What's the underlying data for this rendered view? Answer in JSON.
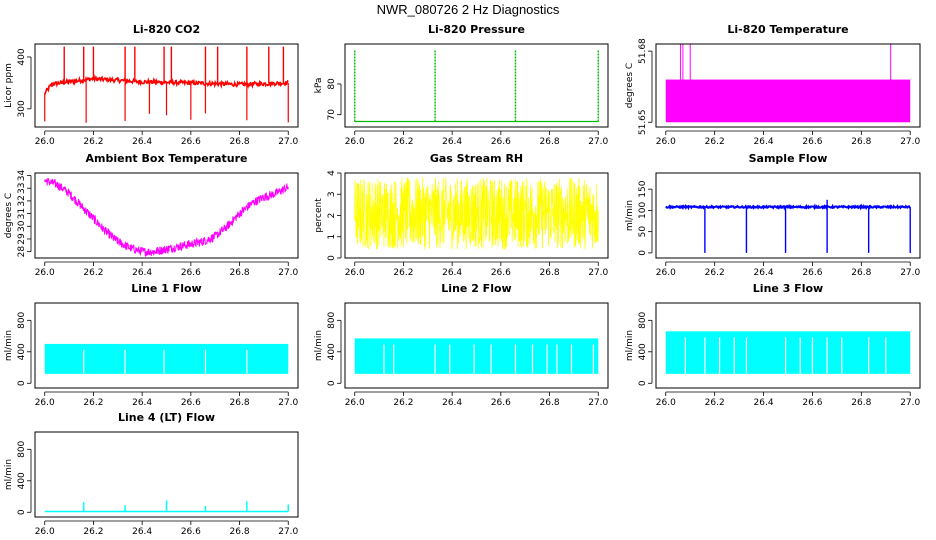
{
  "page": {
    "title": "NWR_080726  2 Hz Diagnostics"
  },
  "chart_data": [
    {
      "id": "co2",
      "type": "line",
      "title": "Li-820 CO2",
      "ylabel": "Licor ppm",
      "color": "#ff0000",
      "xlim": [
        26.0,
        27.0
      ],
      "xticks": [
        "26.0",
        "26.2",
        "26.4",
        "26.6",
        "26.8",
        "27.0"
      ],
      "ylim": [
        265,
        425
      ],
      "yticks": [
        300,
        400
      ],
      "series": [
        {
          "baseline": [
            [
              26.0,
              330
            ],
            [
              26.03,
              348
            ],
            [
              26.1,
              352
            ],
            [
              26.2,
              358
            ],
            [
              26.4,
              352
            ],
            [
              26.6,
              350
            ],
            [
              26.8,
              347
            ],
            [
              27.0,
              350
            ]
          ],
          "spikes_up": [
            26.08,
            26.16,
            26.2,
            26.33,
            26.37,
            26.49,
            26.52,
            26.66,
            26.71,
            26.83,
            26.92,
            26.98
          ],
          "spikes_down": [
            26.0,
            26.17,
            26.33,
            26.43,
            26.5,
            26.6,
            26.66,
            26.83,
            27.0
          ],
          "peak": 420
        }
      ]
    },
    {
      "id": "pressure",
      "type": "line",
      "title": "Li-820 Pressure",
      "ylabel": "kPa",
      "color": "#00bb00",
      "xlim": [
        26.0,
        27.0
      ],
      "xticks": [
        "26.0",
        "26.2",
        "26.4",
        "26.6",
        "26.8",
        "27.0"
      ],
      "ylim": [
        66,
        93
      ],
      "yticks": [
        70,
        80
      ],
      "series": [
        {
          "baseline_value": 67.8,
          "spikes": [
            26.0,
            26.33,
            26.66,
            27.0
          ],
          "peak": 91
        }
      ]
    },
    {
      "id": "temperature",
      "type": "area",
      "title": "Li-820 Temperature",
      "ylabel": "degrees C",
      "color": "#ff00ff",
      "xlim": [
        26.0,
        27.0
      ],
      "xticks": [
        "26.0",
        "26.2",
        "26.4",
        "26.6",
        "26.8",
        "27.0"
      ],
      "ylim": [
        51.648,
        51.683
      ],
      "yticks": [
        "51.65",
        "51.68"
      ],
      "series": [
        {
          "band": [
            51.65,
            51.668
          ],
          "spikes": [
            26.06,
            26.07,
            26.1,
            26.92
          ],
          "peak": 51.683
        }
      ]
    },
    {
      "id": "ambient",
      "type": "line",
      "title": "Ambient Box Temperature",
      "ylabel": "degrees C",
      "color": "#ff00ff",
      "xlim": [
        26.0,
        27.0
      ],
      "xticks": [
        "26.0",
        "26.2",
        "26.4",
        "26.6",
        "26.8",
        "27.0"
      ],
      "ylim": [
        27.5,
        34.2
      ],
      "yticks": [
        28,
        29,
        30,
        31,
        32,
        33,
        34
      ],
      "series": [
        {
          "values": [
            [
              26.0,
              33.6
            ],
            [
              26.05,
              33.3
            ],
            [
              26.1,
              32.6
            ],
            [
              26.15,
              31.6
            ],
            [
              26.2,
              30.6
            ],
            [
              26.25,
              29.6
            ],
            [
              26.3,
              28.8
            ],
            [
              26.35,
              28.3
            ],
            [
              26.4,
              28.0
            ],
            [
              26.45,
              28.0
            ],
            [
              26.5,
              28.2
            ],
            [
              26.55,
              28.4
            ],
            [
              26.6,
              28.6
            ],
            [
              26.65,
              28.8
            ],
            [
              26.7,
              29.2
            ],
            [
              26.75,
              30.0
            ],
            [
              26.8,
              31.0
            ],
            [
              26.85,
              31.8
            ],
            [
              26.9,
              32.3
            ],
            [
              26.95,
              32.6
            ],
            [
              27.0,
              33.1
            ]
          ],
          "noise": 0.35
        }
      ]
    },
    {
      "id": "rh",
      "type": "line",
      "title": "Gas Stream RH",
      "ylabel": "percent",
      "color": "#ffff00",
      "xlim": [
        26.0,
        27.0
      ],
      "xticks": [
        "26.0",
        "26.2",
        "26.4",
        "26.6",
        "26.8",
        "27.0"
      ],
      "ylim": [
        0,
        4
      ],
      "yticks": [
        0,
        1,
        2,
        3,
        4
      ],
      "series": [
        {
          "center": 2.1,
          "low": 0.4,
          "high": 3.8
        }
      ]
    },
    {
      "id": "sample",
      "type": "line",
      "title": "Sample Flow",
      "ylabel": "ml/min",
      "color": "#0000ff",
      "xlim": [
        26.0,
        27.0
      ],
      "xticks": [
        "26.0",
        "26.2",
        "26.4",
        "26.6",
        "26.8",
        "27.0"
      ],
      "ylim": [
        -12,
        188
      ],
      "yticks": [
        0,
        50,
        100,
        150
      ],
      "series": [
        {
          "baseline_value": 108,
          "dips": [
            26.16,
            26.33,
            26.49,
            26.66,
            26.83,
            27.0
          ],
          "dip_low": 0,
          "peak_at": 26.66,
          "peak": 125
        }
      ]
    },
    {
      "id": "line1",
      "type": "area",
      "title": "Line 1 Flow",
      "ylabel": "ml/min",
      "color": "#00ffff",
      "xlim": [
        26.0,
        27.0
      ],
      "xticks": [
        "26.0",
        "26.2",
        "26.4",
        "26.6",
        "26.8",
        "27.0"
      ],
      "ylim": [
        -60,
        1020
      ],
      "yticks": [
        0,
        400,
        800
      ],
      "ytick_labels": [
        "0",
        "400",
        "800"
      ],
      "series": [
        {
          "band": [
            120,
            500
          ],
          "gaps": [
            26.16,
            26.33,
            26.49,
            26.66,
            26.83
          ]
        }
      ]
    },
    {
      "id": "line2",
      "type": "area",
      "title": "Line 2 Flow",
      "ylabel": "ml/min",
      "color": "#00ffff",
      "xlim": [
        26.0,
        27.0
      ],
      "xticks": [
        "26.0",
        "26.2",
        "26.4",
        "26.6",
        "26.8",
        "27.0"
      ],
      "ylim": [
        -60,
        1020
      ],
      "yticks": [
        0,
        400,
        800
      ],
      "ytick_labels": [
        "0",
        "400",
        "800"
      ],
      "series": [
        {
          "band": [
            120,
            570
          ],
          "gaps": [
            26.12,
            26.16,
            26.33,
            26.39,
            26.49,
            26.56,
            26.66,
            26.73,
            26.79,
            26.83,
            26.89,
            26.98
          ]
        }
      ]
    },
    {
      "id": "line3",
      "type": "area",
      "title": "Line 3 Flow",
      "ylabel": "ml/min",
      "color": "#00ffff",
      "xlim": [
        26.0,
        27.0
      ],
      "xticks": [
        "26.0",
        "26.2",
        "26.4",
        "26.6",
        "26.8",
        "27.0"
      ],
      "ylim": [
        -60,
        1020
      ],
      "yticks": [
        0,
        400,
        800
      ],
      "ytick_labels": [
        "0",
        "400",
        "800"
      ],
      "series": [
        {
          "band": [
            120,
            660
          ],
          "gaps": [
            26.08,
            26.16,
            26.22,
            26.28,
            26.33,
            26.49,
            26.55,
            26.6,
            26.66,
            26.72,
            26.83,
            26.9
          ]
        }
      ]
    },
    {
      "id": "line4",
      "type": "line",
      "title": "Line 4 (LT) Flow",
      "ylabel": "ml/min",
      "color": "#00ffff",
      "xlim": [
        26.0,
        27.0
      ],
      "xticks": [
        "26.0",
        "26.2",
        "26.4",
        "26.6",
        "26.8",
        "27.0"
      ],
      "ylim": [
        -60,
        1020
      ],
      "yticks": [
        0,
        400,
        800
      ],
      "ytick_labels": [
        "0",
        "400",
        "800"
      ],
      "series": [
        {
          "baseline_value": 10,
          "spikes": [
            26.16,
            26.33,
            26.5,
            26.66,
            26.83,
            27.0
          ],
          "spike_peaks": [
            130,
            90,
            150,
            80,
            140,
            100
          ]
        }
      ]
    }
  ]
}
